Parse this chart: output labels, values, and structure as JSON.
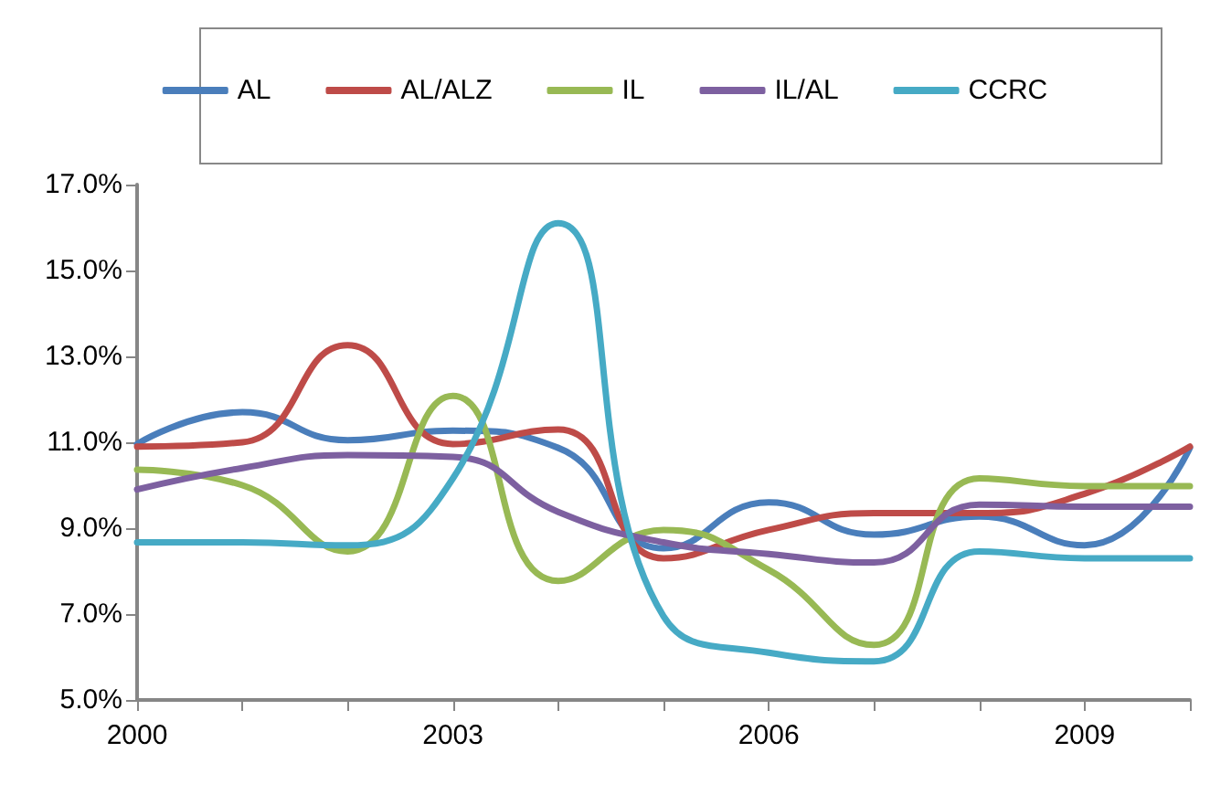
{
  "chart_data": {
    "type": "line",
    "categories": [
      "2000",
      null,
      null,
      "2003",
      null,
      null,
      "2006",
      null,
      null,
      "2009",
      null
    ],
    "series": [
      {
        "name": "AL",
        "color": "#4a7ebb",
        "values": [
          10.96,
          11.7,
          11.05,
          11.27,
          10.87,
          8.53,
          9.6,
          8.85,
          9.27,
          8.6,
          10.87
        ]
      },
      {
        "name": "AL/ALZ",
        "color": "#be4b48",
        "values": [
          10.9,
          11.0,
          13.26,
          10.96,
          11.3,
          8.3,
          8.96,
          9.35,
          9.35,
          9.8,
          10.9
        ]
      },
      {
        "name": "IL",
        "color": "#98b954",
        "values": [
          10.36,
          10.0,
          8.46,
          12.08,
          7.77,
          8.96,
          8.03,
          6.28,
          10.16,
          9.98,
          9.98
        ]
      },
      {
        "name": "IL/AL",
        "color": "#7d60a0",
        "values": [
          9.9,
          10.4,
          10.7,
          10.66,
          9.38,
          8.67,
          8.4,
          8.2,
          9.55,
          9.5,
          9.5
        ]
      },
      {
        "name": "CCRC",
        "color": "#46aac5",
        "values": [
          8.67,
          8.67,
          8.6,
          10.16,
          16.1,
          6.95,
          6.1,
          5.9,
          8.46,
          8.3,
          8.3
        ]
      }
    ],
    "ylim": [
      5,
      17
    ],
    "yticks": [
      {
        "value": 5,
        "label": "5.0%"
      },
      {
        "value": 7,
        "label": "7.0%"
      },
      {
        "value": 9,
        "label": "9.0%"
      },
      {
        "value": 11,
        "label": "11.0%"
      },
      {
        "value": 13,
        "label": "13.0%"
      },
      {
        "value": 15,
        "label": "15.0%"
      },
      {
        "value": 17,
        "label": "17.0%"
      }
    ],
    "grid": false,
    "legend": "top",
    "marker": "none",
    "line_style": "solid"
  }
}
